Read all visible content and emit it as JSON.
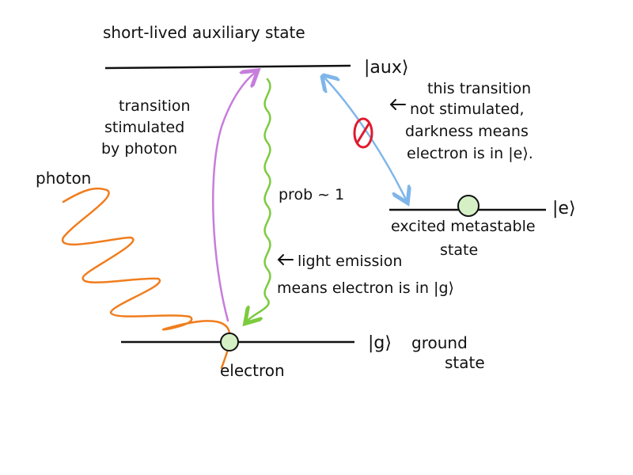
{
  "labels": {
    "aux_title": "short-lived auxiliary state",
    "aux_ket": "|aux⟩",
    "e_ket": "|e⟩",
    "g_ket": "|g⟩",
    "ground_1": "ground",
    "ground_2": "state",
    "excited_1": "excited metastable",
    "excited_2": "state",
    "electron": "electron",
    "photon": "photon",
    "stim_1": "transition",
    "stim_2": "stimulated",
    "stim_3": "by photon",
    "prob": "prob ~ 1",
    "emission_1": "light emission",
    "emission_2": "means electron is in |g⟩",
    "note_1": "this transition",
    "note_2": "not stimulated,",
    "note_3": "darkness means",
    "note_4": "electron is in |e⟩."
  },
  "colors": {
    "ink": "#111111",
    "photon": "#f07d1e",
    "stimulated_arrow": "#c77ddb",
    "emission": "#7ccb3f",
    "blocked_transition": "#7fb6ea",
    "forbidden_mark": "#e0192c",
    "electron_fill": "#d6f0c6"
  }
}
